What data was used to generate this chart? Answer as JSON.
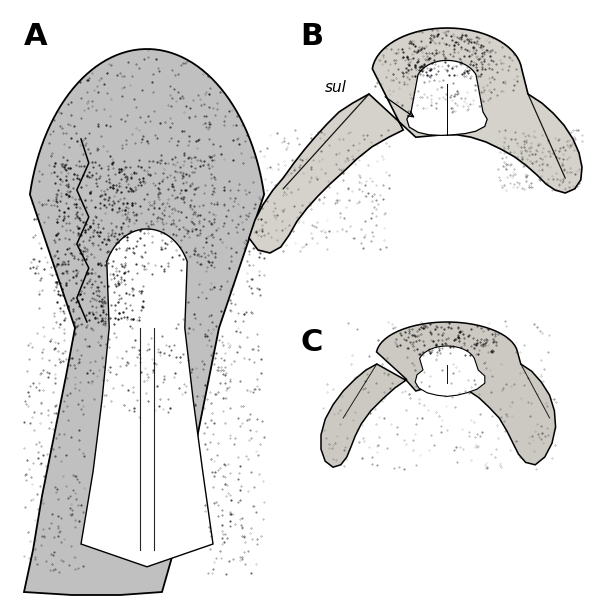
{
  "background_color": "#ffffff",
  "label_A": "A",
  "label_B": "B",
  "label_C": "C",
  "label_sul": "sul",
  "fig_width": 6.0,
  "fig_height": 6.08,
  "dpi": 100,
  "label_fontsize": 22,
  "sul_fontsize": 11
}
